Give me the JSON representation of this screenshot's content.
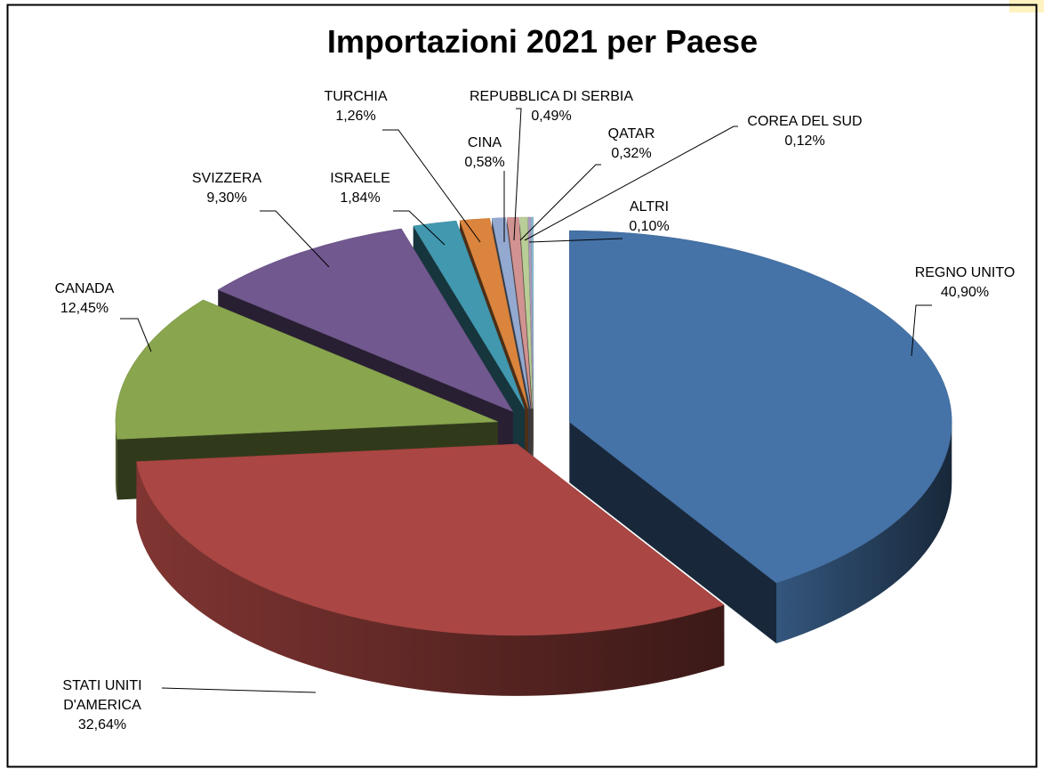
{
  "chart_data": {
    "type": "pie",
    "title": "Importazioni 2021 per Paese",
    "categories": [
      "REGNO UNITO",
      "STATI UNITI D'AMERICA",
      "CANADA",
      "SVIZZERA",
      "ISRAELE",
      "TURCHIA",
      "CINA",
      "REPUBBLICA DI SERBIA",
      "QATAR",
      "COREA DEL SUD",
      "ALTRI"
    ],
    "values": [
      40.9,
      32.64,
      12.45,
      9.3,
      1.84,
      1.26,
      0.58,
      0.49,
      0.32,
      0.12,
      0.1
    ],
    "value_labels": [
      "40,90%",
      "32,64%",
      "12,45%",
      "9,30%",
      "1,84%",
      "1,26%",
      "0,58%",
      "0,49%",
      "0,32%",
      "0,12%",
      "0,10%"
    ],
    "colors": [
      "#4572a7",
      "#aa4643",
      "#89a54e",
      "#71588f",
      "#4198af",
      "#db843d",
      "#93a9cf",
      "#d19392",
      "#b9cd96",
      "#a99bbd",
      "#8cbcd0"
    ]
  }
}
